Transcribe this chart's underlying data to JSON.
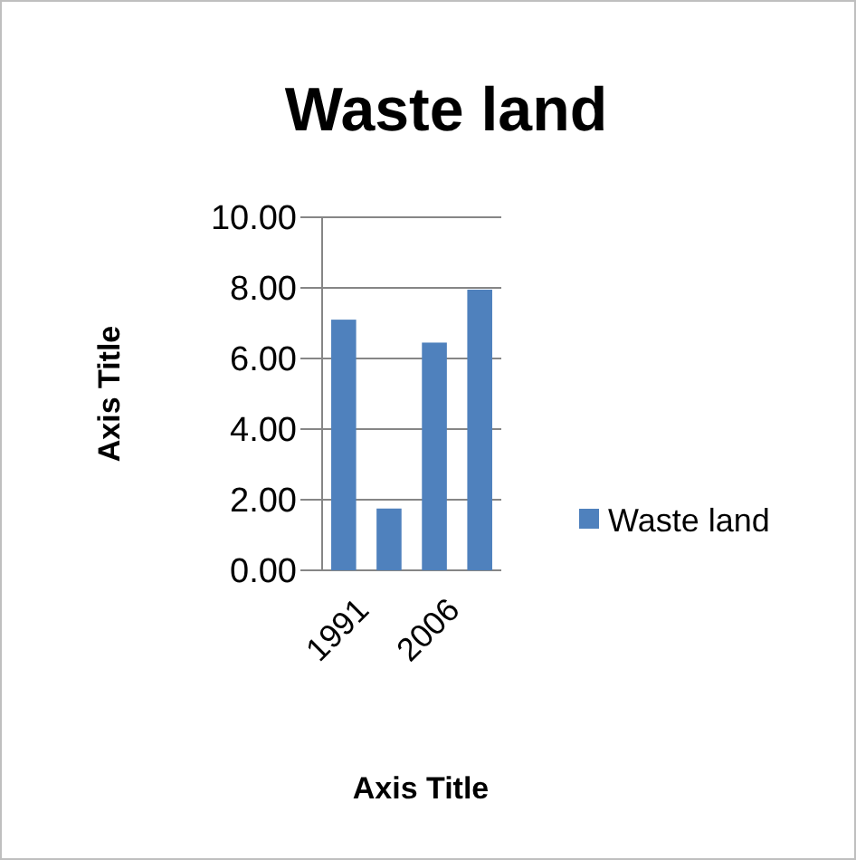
{
  "chart_data": {
    "type": "bar",
    "title": "Waste land",
    "xlabel": "Axis Title",
    "ylabel": "Axis Title",
    "categories": [
      "1991",
      null,
      "2006",
      null
    ],
    "series": [
      {
        "name": "Waste land",
        "color": "#4f81bd",
        "values": [
          7.1,
          1.75,
          6.45,
          7.95
        ]
      }
    ],
    "ylim": [
      0,
      10
    ],
    "yticks": [
      {
        "value": 0,
        "label": "0.00"
      },
      {
        "value": 2,
        "label": "2.00"
      },
      {
        "value": 4,
        "label": "4.00"
      },
      {
        "value": 6,
        "label": "6.00"
      },
      {
        "value": 8,
        "label": "8.00"
      },
      {
        "value": 10,
        "label": "10.00"
      }
    ],
    "grid": "y",
    "legend": "right"
  }
}
